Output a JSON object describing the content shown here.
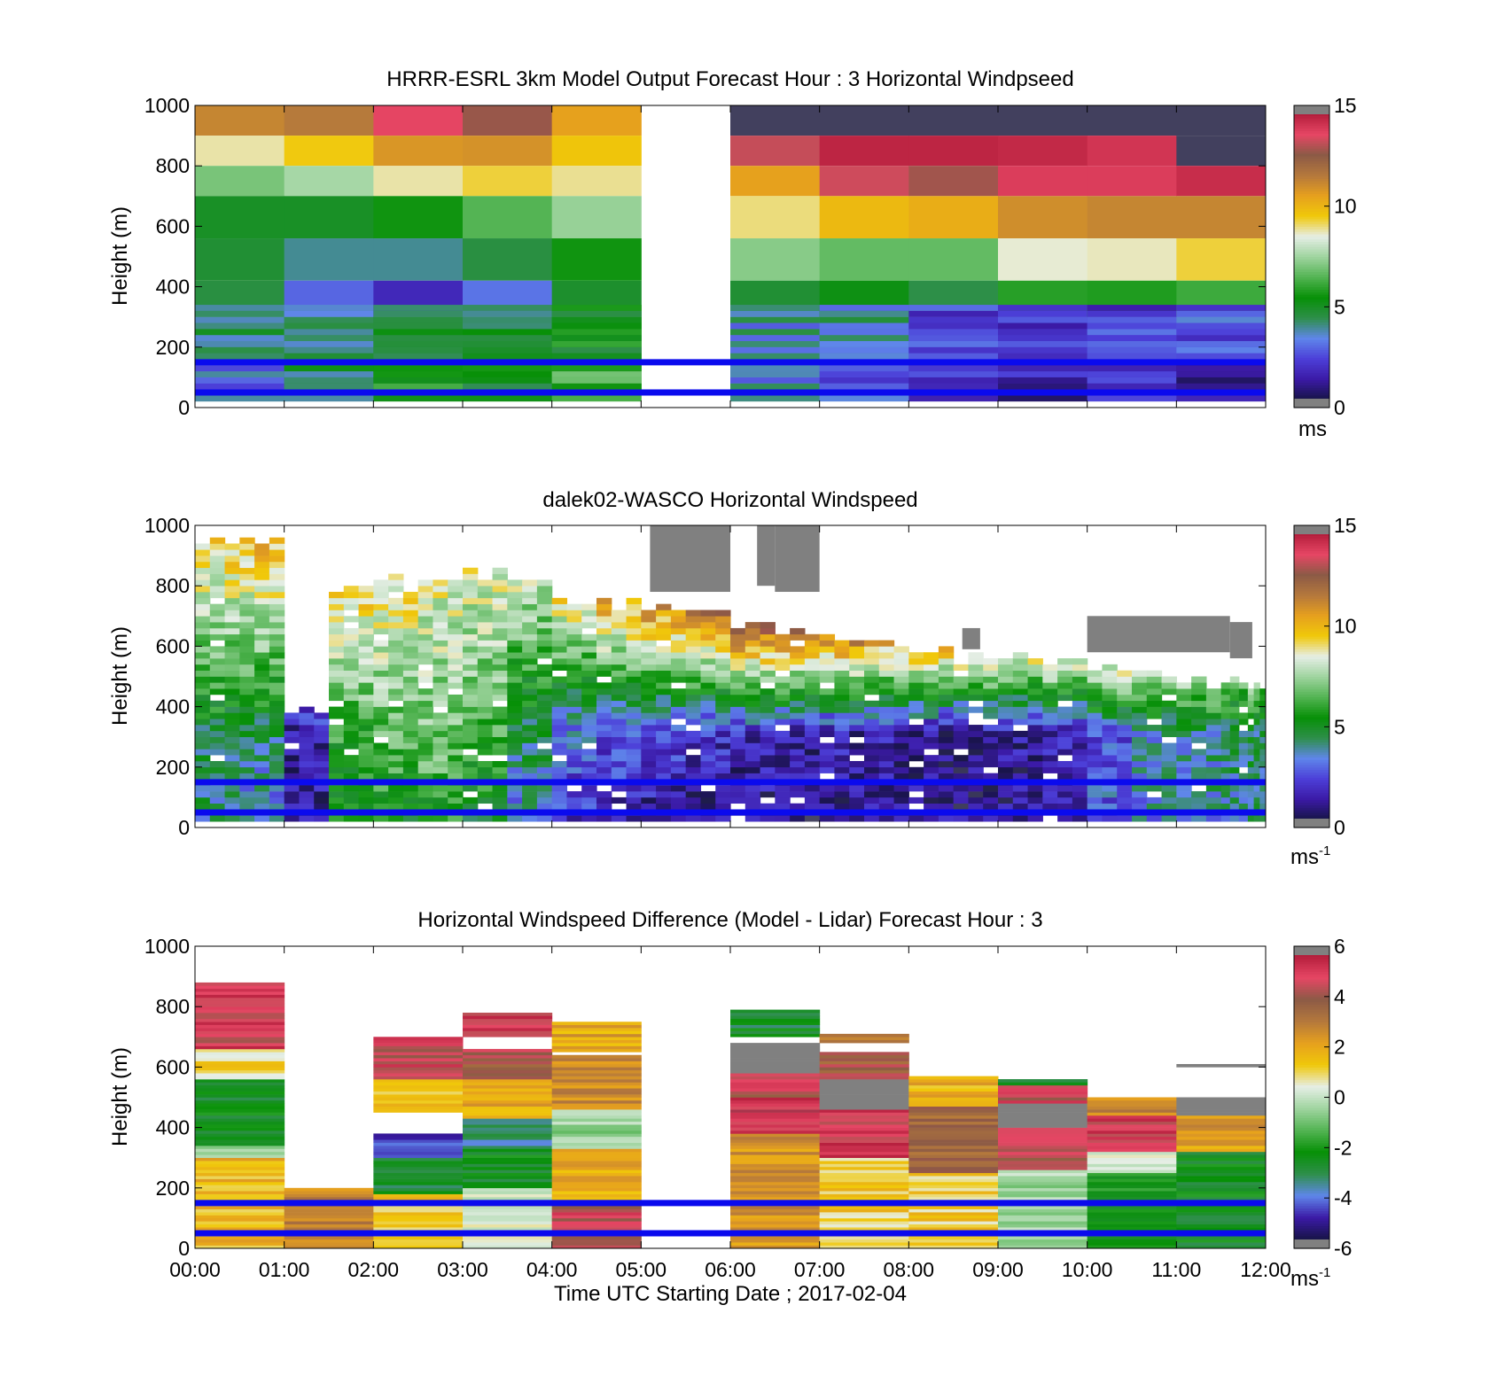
{
  "colors": {
    "overlay_line": "#0a0aee",
    "missing": "#808080",
    "speed_scale": [
      "#808080",
      "#171447",
      "#3b1aa6",
      "#4c3fd8",
      "#5f86ea",
      "#2e8f4a",
      "#079007",
      "#53b453",
      "#9fd49f",
      "#e6eee6",
      "#f0c80a",
      "#e6a01e",
      "#b4783c",
      "#8c5a46",
      "#e64664",
      "#b41e3c",
      "#808080"
    ],
    "diff_scale": [
      "#808080",
      "#171447",
      "#3b1aa6",
      "#5f86ea",
      "#2e8f4a",
      "#079007",
      "#53b453",
      "#9fd49f",
      "#e6eee6",
      "#f0c80a",
      "#e6a01e",
      "#b4783c",
      "#8c5a46",
      "#e64664",
      "#b41e3c",
      "#808080"
    ]
  },
  "chart_data": [
    {
      "type": "heatmap",
      "title": "HRRR-ESRL 3km Model Output   Forecast Hour : 3 Horizontal Windpseed",
      "ylabel": "Height (m)",
      "xlabel": "",
      "ylim": [
        0,
        1000
      ],
      "yticks": [
        "0",
        "200",
        "400",
        "600",
        "800",
        "1000"
      ],
      "xlim": [
        0,
        12
      ],
      "xticklabels": [],
      "colorbar": {
        "min": 0,
        "max": 15,
        "ticks": [
          "0",
          "5",
          "10",
          "15"
        ],
        "unit": "ms",
        "unit_sup": ""
      },
      "lines_at_height": [
        150,
        50
      ],
      "bins": [
        [
          0,
          1000,
          1000,
          1000,
          1000,
          1000
        ],
        [
          900,
          850,
          800,
          850,
          900,
          1000
        ],
        [
          800,
          750,
          700,
          700,
          760,
          1000
        ],
        [
          700,
          680,
          640,
          600,
          650,
          1000
        ],
        [
          560,
          600,
          600,
          560,
          600,
          1000
        ],
        [
          420,
          450,
          460,
          420,
          470,
          1000
        ],
        [
          300,
          310,
          330,
          300,
          320,
          1000
        ],
        [
          160,
          160,
          170,
          160,
          160,
          1000
        ],
        [
          0,
          0,
          0,
          0,
          0,
          1000
        ]
      ],
      "column_values": [
        [
          11.2,
          8.8,
          7.0,
          5.0,
          4.8,
          4.6,
          4.3,
          3.2,
          4.0
        ],
        [
          11.5,
          9.5,
          7.6,
          5.0,
          4.0,
          3.0,
          4.2,
          4.6,
          3.2
        ],
        [
          13.6,
          10.8,
          8.8,
          5.6,
          4.0,
          1.8,
          4.8,
          5.4,
          6.1
        ],
        [
          12.7,
          10.9,
          9.3,
          6.5,
          4.6,
          3.2,
          4.6,
          4.9,
          5.6
        ],
        [
          10.5,
          9.6,
          8.9,
          7.4,
          5.6,
          4.9,
          5.3,
          6.1,
          6.9
        ],
        [
          null,
          null,
          null,
          null,
          null,
          null,
          null,
          null,
          null
        ],
        [
          0.0,
          13.2,
          10.5,
          9.0,
          7.2,
          4.8,
          3.7,
          3.5,
          4.9
        ],
        [
          0.0,
          14.4,
          13.3,
          9.9,
          6.7,
          5.3,
          3.9,
          3.0,
          4.9
        ],
        [
          0.0,
          14.4,
          12.8,
          10.2,
          6.7,
          4.5,
          2.5,
          1.9,
          2.2
        ],
        [
          0.0,
          14.3,
          13.8,
          11.0,
          8.6,
          5.9,
          2.2,
          1.6,
          1.0
        ],
        [
          0.0,
          14.0,
          13.8,
          11.2,
          8.7,
          5.8,
          2.4,
          1.9,
          1.8
        ],
        [
          0.0,
          0.0,
          14.2,
          11.2,
          9.3,
          6.2,
          2.8,
          1.0,
          1.6
        ]
      ]
    },
    {
      "type": "heatmap",
      "title": "dalek02-WASCO  Horizontal Windspeed",
      "ylabel": "Height (m)",
      "xlabel": "",
      "ylim": [
        0,
        1000
      ],
      "yticks": [
        "0",
        "200",
        "400",
        "600",
        "800",
        "1000"
      ],
      "xlim": [
        0,
        12
      ],
      "xticklabels": [],
      "colorbar": {
        "min": 0,
        "max": 15,
        "ticks": [
          "0",
          "5",
          "10",
          "15"
        ],
        "unit": "ms",
        "unit_sup": "-1"
      },
      "lines_at_height": [
        150,
        50
      ],
      "hours": [
        0,
        0.5,
        1.0,
        1.5,
        2.0,
        2.5,
        3.0,
        3.5,
        4.0,
        4.5,
        5.0,
        5.5,
        6.0,
        6.5,
        7.0,
        7.5,
        8.0,
        8.5,
        9.0,
        9.5,
        10.0,
        10.5,
        11.0,
        11.5,
        11.8
      ],
      "profile_top_m": [
        960,
        960,
        400,
        800,
        830,
        830,
        850,
        820,
        760,
        750,
        740,
        720,
        680,
        660,
        640,
        620,
        600,
        580,
        570,
        560,
        540,
        520,
        500,
        490,
        480
      ],
      "speed_at_20m": [
        4.0,
        3.0,
        1.5,
        5.0,
        5.2,
        5.5,
        5.0,
        3.4,
        2.0,
        1.5,
        1.2,
        1.0,
        1.0,
        1.0,
        1.2,
        1.2,
        1.1,
        1.0,
        1.0,
        1.8,
        3.0,
        3.6,
        3.8,
        4.0,
        4.2
      ],
      "speed_at_300m": [
        4.8,
        4.5,
        1.2,
        6.0,
        6.6,
        6.9,
        6.2,
        4.5,
        3.2,
        2.8,
        2.5,
        2.0,
        1.8,
        1.5,
        1.6,
        1.5,
        1.3,
        1.1,
        1.4,
        1.6,
        2.8,
        3.6,
        4.0,
        4.3,
        4.6
      ],
      "speed_at_top": [
        9.5,
        10.0,
        2.5,
        9.5,
        9.0,
        8.5,
        8.5,
        8.0,
        9.0,
        10.5,
        11.0,
        12.0,
        12.5,
        12.0,
        11.0,
        10.5,
        10.0,
        9.5,
        9.0,
        9.0,
        8.5,
        8.0,
        7.5,
        7.0,
        7.0
      ],
      "missing_patches": [
        {
          "hour_from": 5.1,
          "hour_to": 6.0,
          "height_from": 780,
          "height_to": 1000
        },
        {
          "hour_from": 6.3,
          "hour_to": 6.5,
          "height_from": 800,
          "height_to": 1000
        },
        {
          "hour_from": 6.5,
          "hour_to": 7.0,
          "height_from": 780,
          "height_to": 1000
        },
        {
          "hour_from": 8.6,
          "hour_to": 8.8,
          "height_from": 590,
          "height_to": 660
        },
        {
          "hour_from": 10.0,
          "hour_to": 11.6,
          "height_from": 580,
          "height_to": 700
        },
        {
          "hour_from": 11.6,
          "hour_to": 11.85,
          "height_from": 560,
          "height_to": 680
        }
      ]
    },
    {
      "type": "heatmap",
      "title": "Horizontal Windspeed Difference (Model - Lidar) Forecast Hour : 3",
      "ylabel": "Height (m)",
      "xlabel": "Time UTC  Starting Date ; 2017-02-04",
      "ylim": [
        0,
        1000
      ],
      "yticks": [
        "0",
        "200",
        "400",
        "600",
        "800",
        "1000"
      ],
      "xlim": [
        0,
        12
      ],
      "xticklabels": [
        "00:00",
        "01:00",
        "02:00",
        "03:00",
        "04:00",
        "05:00",
        "06:00",
        "07:00",
        "08:00",
        "09:00",
        "10:00",
        "11:00",
        "12:00"
      ],
      "colorbar": {
        "min": -6,
        "max": 6,
        "ticks": [
          "-6",
          "-4",
          "-2",
          "0",
          "2",
          "4",
          "6"
        ],
        "unit": "ms",
        "unit_sup": "-1"
      },
      "lines_at_height": [
        150,
        50
      ],
      "columns": [
        {
          "hour": 0,
          "segments": [
            [
              0,
              300,
              1.6
            ],
            [
              300,
              340,
              -0.6
            ],
            [
              340,
              560,
              -2.4
            ],
            [
              560,
              660,
              1.0
            ],
            [
              660,
              880,
              4.8
            ]
          ]
        },
        {
          "hour": 1,
          "segments": [
            [
              0,
              200,
              2.8
            ]
          ]
        },
        {
          "hour": 2,
          "segments": [
            [
              0,
              180,
              1.2
            ],
            [
              180,
              300,
              -2.6
            ],
            [
              300,
              380,
              -4.2
            ],
            [
              450,
              560,
              1.4
            ],
            [
              560,
              700,
              4.6
            ]
          ]
        },
        {
          "hour": 3,
          "segments": [
            [
              0,
              200,
              0.4
            ],
            [
              200,
              330,
              -2.5
            ],
            [
              330,
              430,
              -3.4
            ],
            [
              430,
              560,
              2.0
            ],
            [
              560,
              660,
              4.0
            ],
            [
              700,
              780,
              5.0
            ]
          ]
        },
        {
          "hour": 4,
          "segments": [
            [
              0,
              160,
              4.6
            ],
            [
              160,
              330,
              1.8
            ],
            [
              330,
              460,
              -0.5
            ],
            [
              460,
              640,
              2.6
            ],
            [
              650,
              750,
              2.0
            ]
          ]
        },
        {
          "hour": 5,
          "segments": []
        },
        {
          "hour": 6,
          "segments": [
            [
              0,
              380,
              2.4
            ],
            [
              380,
              500,
              5.2
            ],
            [
              500,
              580,
              4.4
            ],
            [
              580,
              680,
              6.5
            ],
            [
              700,
              790,
              -2.6
            ]
          ]
        },
        {
          "hour": 7,
          "segments": [
            [
              0,
              300,
              1.2
            ],
            [
              300,
              460,
              5.0
            ],
            [
              460,
              560,
              6.5
            ],
            [
              560,
              650,
              3.8
            ],
            [
              680,
              710,
              2.8
            ]
          ]
        },
        {
          "hour": 8,
          "segments": [
            [
              0,
              250,
              1.2
            ],
            [
              250,
              470,
              3.6
            ],
            [
              470,
              570,
              1.8
            ]
          ]
        },
        {
          "hour": 9,
          "segments": [
            [
              0,
              260,
              -0.3
            ],
            [
              260,
              400,
              4.2
            ],
            [
              400,
              480,
              6.5
            ],
            [
              480,
              540,
              4.5
            ],
            [
              540,
              560,
              -2.4
            ]
          ]
        },
        {
          "hour": 10,
          "segments": [
            [
              0,
              250,
              -2.0
            ],
            [
              250,
              320,
              0.6
            ],
            [
              320,
              440,
              4.8
            ],
            [
              440,
              500,
              2.8
            ]
          ]
        },
        {
          "hour": 11,
          "segments": [
            [
              0,
              320,
              -2.4
            ],
            [
              320,
              440,
              2.2
            ],
            [
              440,
              500,
              6.5
            ],
            [
              600,
              610,
              6.5
            ]
          ]
        }
      ]
    }
  ]
}
